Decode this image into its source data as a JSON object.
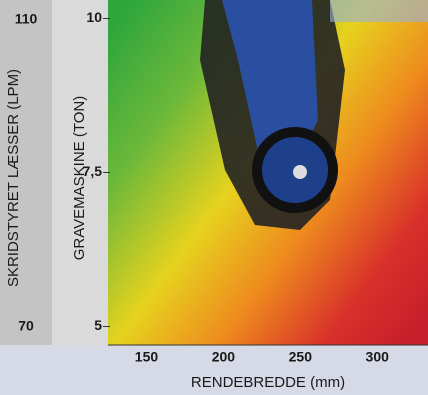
{
  "chart_data": {
    "type": "gradient",
    "xlabel": "RENDEBREDDE (mm)",
    "ylabel": "GRAVEMASKINE (TON)",
    "y2label": "SKRIDSTYRET LÆSSER (LPM)",
    "xlim": [
      125,
      333
    ],
    "xticks": [
      150,
      200,
      250,
      300
    ],
    "ylim": [
      4.7,
      10.3
    ],
    "yticks": [
      5,
      {
        "value": 7.5,
        "label": "7,5"
      },
      10
    ],
    "y2lim": [
      67.6,
      112.6
    ],
    "y2ticks": [
      70,
      110
    ]
  }
}
